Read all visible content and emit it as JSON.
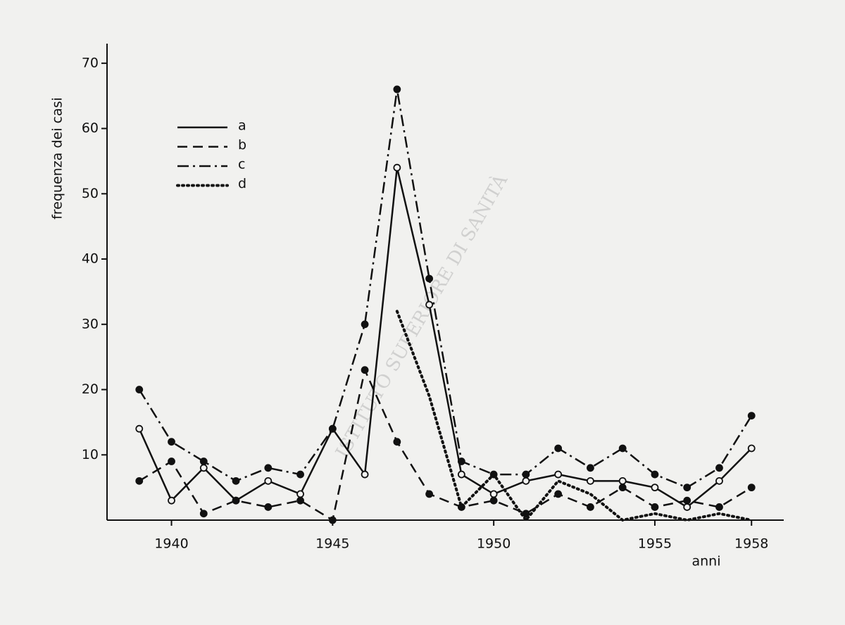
{
  "chart_data": {
    "type": "line",
    "watermark": "ISTITUTO SUPERIORE DI SANITÀ",
    "y_label": "frequenza dei casi",
    "x_label": "anni",
    "x": [
      1939,
      1940,
      1941,
      1942,
      1943,
      1944,
      1945,
      1946,
      1947,
      1948,
      1949,
      1950,
      1951,
      1952,
      1953,
      1954,
      1955,
      1956,
      1957,
      1958
    ],
    "series": [
      {
        "name": "a",
        "color": "#111111",
        "style": "solid",
        "marker": "open",
        "values": [
          14,
          3,
          8,
          3,
          6,
          4,
          14,
          7,
          54,
          33,
          7,
          4,
          6,
          7,
          6,
          6,
          5,
          2,
          6,
          11
        ]
      },
      {
        "name": "b",
        "color": "#111111",
        "style": "dashed",
        "marker": "filled",
        "values": [
          6,
          9,
          1,
          3,
          2,
          3,
          0,
          23,
          12,
          4,
          2,
          3,
          1,
          4,
          2,
          5,
          2,
          3,
          2,
          5
        ]
      },
      {
        "name": "c",
        "color": "#111111",
        "style": "dashdot",
        "marker": "filled",
        "values": [
          20,
          12,
          9,
          6,
          8,
          7,
          14,
          30,
          66,
          37,
          9,
          7,
          7,
          11,
          8,
          11,
          7,
          5,
          8,
          16
        ]
      },
      {
        "name": "d",
        "color": "#111111",
        "style": "dotted",
        "marker": "none",
        "values": [
          null,
          null,
          null,
          null,
          null,
          null,
          null,
          null,
          32,
          19,
          2,
          7,
          0,
          6,
          4,
          0,
          1,
          0,
          1,
          0
        ]
      }
    ],
    "xlim": [
      1938,
      1959
    ],
    "ylim": [
      0,
      73
    ],
    "xticks": [
      1940,
      1945,
      1950,
      1955,
      1958
    ],
    "yticks": [
      10,
      20,
      30,
      40,
      50,
      60,
      70
    ],
    "legend": "upper left"
  }
}
